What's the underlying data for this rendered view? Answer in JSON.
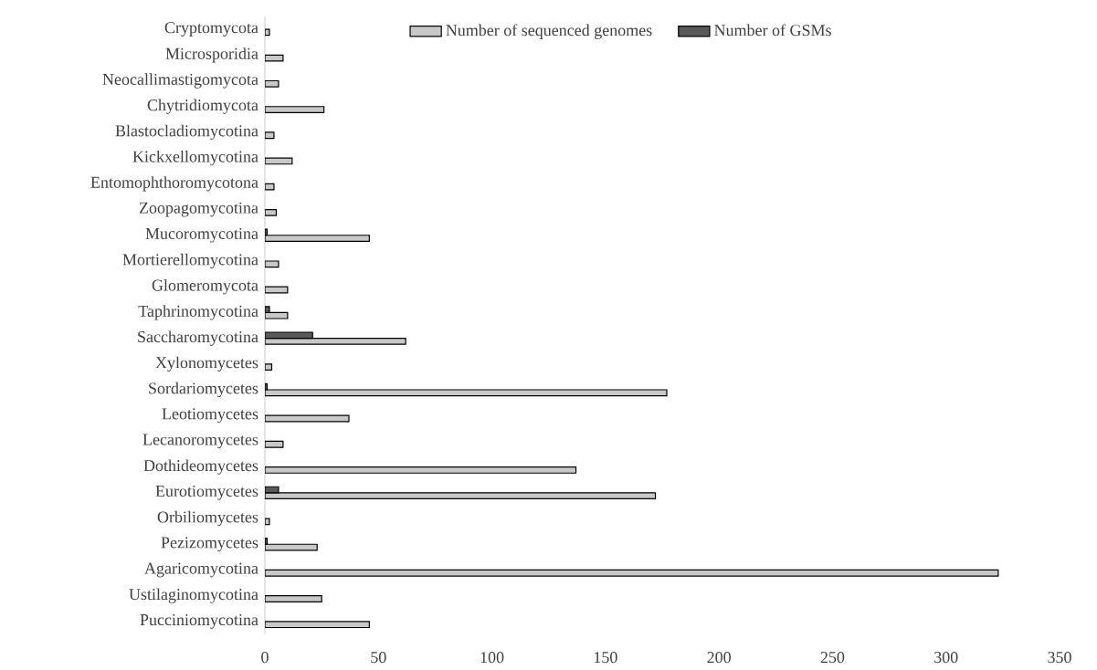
{
  "chart_data": {
    "type": "bar",
    "orientation": "horizontal",
    "categories": [
      "Cryptomycota",
      "Microsporidia",
      "Neocallimastigomycota",
      "Chytridiomycota",
      "Blastocladiomycotina",
      "Kickxellomycotina",
      "Entomophthoromycotona",
      "Zoopagomycotina",
      "Mucoromycotina",
      "Mortierellomycotina",
      "Glomeromycota",
      "Taphrinomycotina",
      "Saccharomycotina",
      "Xylonomycetes",
      "Sordariomycetes",
      "Leotiomycetes",
      "Lecanoromycetes",
      "Dothideomycetes",
      "Eurotiomycetes",
      "Orbiliomycetes",
      "Pezizomycetes",
      "Agaricomycotina",
      "Ustilaginomycotina",
      "Pucciniomycotina"
    ],
    "series": [
      {
        "name": "Number of sequenced genomes",
        "color": "#c8c8c8",
        "values": [
          2,
          8,
          6,
          26,
          4,
          12,
          4,
          5,
          46,
          6,
          10,
          10,
          62,
          3,
          177,
          37,
          8,
          137,
          172,
          2,
          23,
          323,
          25,
          46
        ]
      },
      {
        "name": "Number of GSMs",
        "color": "#595959",
        "values": [
          null,
          null,
          null,
          null,
          null,
          null,
          null,
          null,
          1,
          null,
          null,
          2,
          21,
          null,
          1,
          null,
          null,
          null,
          6,
          null,
          1,
          null,
          null,
          null
        ]
      }
    ],
    "xlim": [
      0,
      350
    ],
    "xticks": [
      0,
      50,
      100,
      150,
      200,
      250,
      300,
      350
    ],
    "legend": "top"
  }
}
